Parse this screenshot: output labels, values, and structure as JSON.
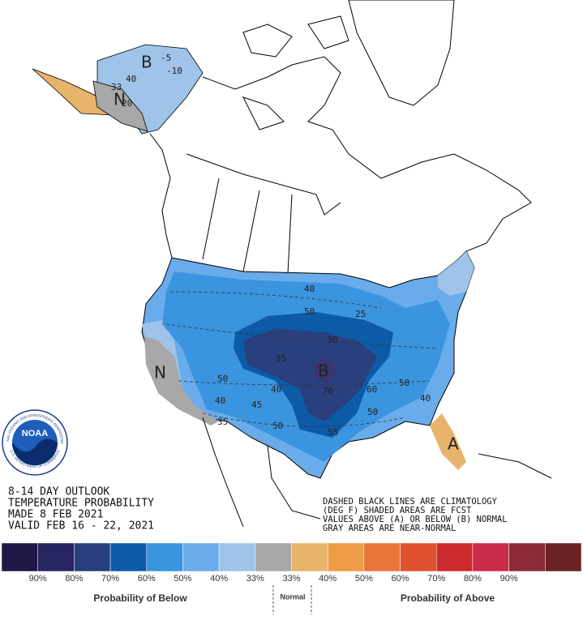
{
  "map": {
    "title_lines": [
      "8-14 DAY OUTLOOK",
      "TEMPERATURE PROBABILITY",
      "MADE  8 FEB 2021",
      "VALID  FEB 16 - 22, 2021"
    ],
    "notes": [
      "DASHED BLACK LINES ARE CLIMATOLOGY",
      "(DEG F) SHADED AREAS ARE FCST",
      "VALUES ABOVE (A) OR BELOW (B) NORMAL",
      "GRAY AREAS ARE NEAR-NORMAL"
    ],
    "region_labels": [
      "B",
      "N",
      "B",
      "N",
      "A"
    ],
    "contour_labels": [
      "-5",
      "-10",
      "40",
      "33",
      "20",
      "40",
      "50",
      "25",
      "30",
      "35",
      "40",
      "70",
      "60",
      "50",
      "50",
      "40",
      "45",
      "50",
      "55",
      "35",
      "50",
      "40"
    ]
  },
  "logo": {
    "name": "NOAA",
    "ring_top": "NATIONAL OCEANIC AND ATMOSPHERIC ADMINISTRATION",
    "ring_bottom": "U.S. DEPARTMENT OF COMMERCE"
  },
  "legend": {
    "colors": [
      "#1d1846",
      "#272462",
      "#2a3f7e",
      "#0d5aa7",
      "#3b94df",
      "#6aaceb",
      "#9fc3e9",
      "#a8a8a8",
      "#e8b46c",
      "#ee9b47",
      "#ea753b",
      "#e0522f",
      "#cc2b2b",
      "#c92c48",
      "#8b2b38",
      "#6a2222"
    ],
    "ticks": [
      "90%",
      "80%",
      "70%",
      "60%",
      "50%",
      "40%",
      "33%",
      "33%",
      "40%",
      "50%",
      "60%",
      "70%",
      "80%",
      "90%"
    ],
    "below": "Probability of Below",
    "normal": "Normal",
    "above": "Probability of Above"
  }
}
